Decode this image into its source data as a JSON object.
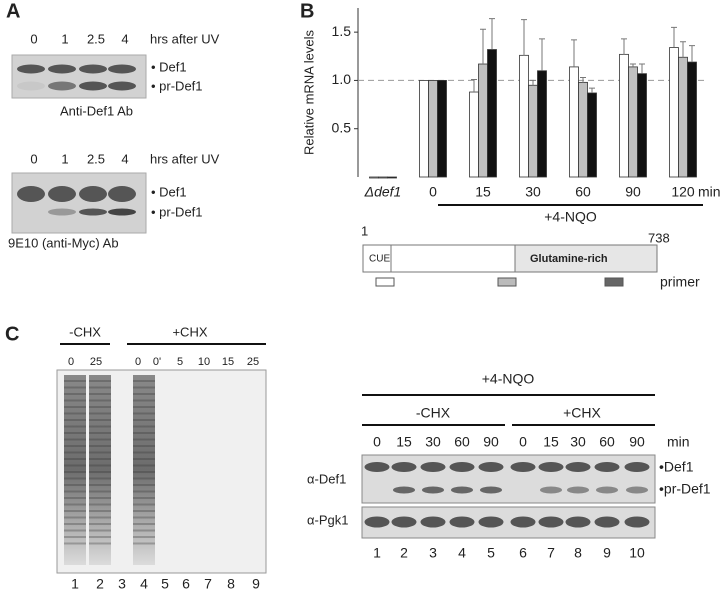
{
  "panel_a": {
    "label": "A",
    "blots": [
      {
        "lanes": [
          "0",
          "1",
          "2.5",
          "4"
        ],
        "lanes_caption": "hrs after UV",
        "bands": [
          "• Def1",
          "• pr-Def1"
        ],
        "antibody": "Anti-Def1 Ab"
      },
      {
        "lanes": [
          "0",
          "1",
          "2.5",
          "4"
        ],
        "lanes_caption": "hrs after UV",
        "bands": [
          "• Def1",
          "• pr-Def1"
        ],
        "antibody": "9E10 (anti-Myc) Ab"
      }
    ]
  },
  "panel_b": {
    "label": "B",
    "diagram": {
      "start": "1",
      "end": "738",
      "domains": [
        "CUE",
        "Glutamine-rich"
      ],
      "primer_label": "primer"
    }
  },
  "chart_data": {
    "type": "bar",
    "y_label": "Relative mRNA levels",
    "categories": [
      "Δdef1",
      "0",
      "15",
      "30",
      "60",
      "90",
      "120"
    ],
    "x_unit": "min",
    "treatment": "+4-NQO",
    "series": [
      {
        "color": "#ffffff",
        "values": [
          0,
          1.0,
          0.88,
          1.26,
          1.14,
          1.27,
          1.34
        ],
        "errors": [
          0,
          0,
          0.13,
          0.37,
          0.28,
          0.16,
          0.21
        ]
      },
      {
        "color": "#c0c0c0",
        "values": [
          0,
          1.0,
          1.17,
          0.95,
          0.98,
          1.14,
          1.24
        ],
        "errors": [
          0,
          0,
          0.36,
          0.05,
          0.05,
          0.03,
          0.16
        ]
      },
      {
        "color": "#111111",
        "values": [
          0,
          1.0,
          1.32,
          1.1,
          0.87,
          1.07,
          1.19
        ],
        "errors": [
          0,
          0,
          0.32,
          0.33,
          0.05,
          0.1,
          0.17
        ]
      }
    ],
    "ylim": [
      0,
      1.75
    ],
    "yticks": [
      0.5,
      {
        "value": 1,
        "label": "1.0"
      },
      1.5
    ],
    "reference_line": 1
  },
  "panel_c": {
    "label": "C",
    "gel": {
      "groups": [
        "-CHX",
        "+CHX"
      ],
      "lanes": [
        "0",
        "25",
        "0",
        "0'",
        "5",
        "10",
        "15",
        "25"
      ],
      "lane_numbers": [
        "1",
        "2",
        "3",
        "4",
        "5",
        "6",
        "7",
        "8",
        "9"
      ]
    },
    "western": {
      "treatment": "+4-NQO",
      "groups": [
        "-CHX",
        "+CHX"
      ],
      "lanes": [
        "0",
        "15",
        "30",
        "60",
        "90",
        "0",
        "15",
        "30",
        "60",
        "90"
      ],
      "lanes_unit": "min",
      "antibodies": [
        "α-Def1",
        "α-Pgk1"
      ],
      "bands": [
        "•Def1",
        "•pr-Def1"
      ],
      "lane_numbers": [
        "1",
        "2",
        "3",
        "4",
        "5",
        "6",
        "7",
        "8",
        "9",
        "10"
      ]
    }
  }
}
